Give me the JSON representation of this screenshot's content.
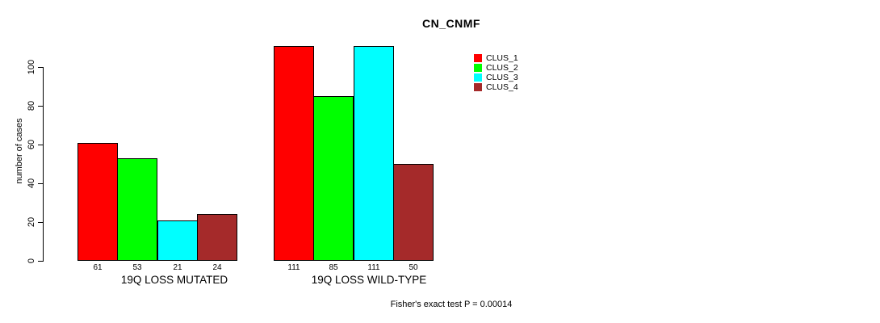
{
  "title": "CN_CNMF",
  "footer": {
    "annotation": "Fisher's exact test P = 0.00014"
  },
  "colors": {
    "background": "#FFFFFF",
    "axis": "#000000",
    "bar_border": "#000000",
    "clus_1": "#FF0000",
    "clus_2": "#00FF00",
    "clus_3": "#00FFFF",
    "clus_4": "#A52A2A"
  },
  "chart_data": {
    "type": "bar",
    "title": "CN_CNMF",
    "xlabel": "",
    "ylabel": "number of cases",
    "ylim": [
      0,
      100
    ],
    "yticks": [
      0,
      20,
      40,
      60,
      80,
      100
    ],
    "grid": false,
    "legend_position": "right",
    "bar_value_labels": true,
    "categories": [
      "19Q LOSS MUTATED",
      "19Q LOSS WILD-TYPE"
    ],
    "series": [
      {
        "name": "CLUS_1",
        "color": "#FF0000",
        "values": [
          61,
          111
        ]
      },
      {
        "name": "CLUS_2",
        "color": "#00FF00",
        "values": [
          53,
          85
        ]
      },
      {
        "name": "CLUS_3",
        "color": "#00FFFF",
        "values": [
          21,
          111
        ]
      },
      {
        "name": "CLUS_4",
        "color": "#A52A2A",
        "values": [
          24,
          50
        ]
      }
    ],
    "annotation": "Fisher's exact test P = 0.00014"
  }
}
